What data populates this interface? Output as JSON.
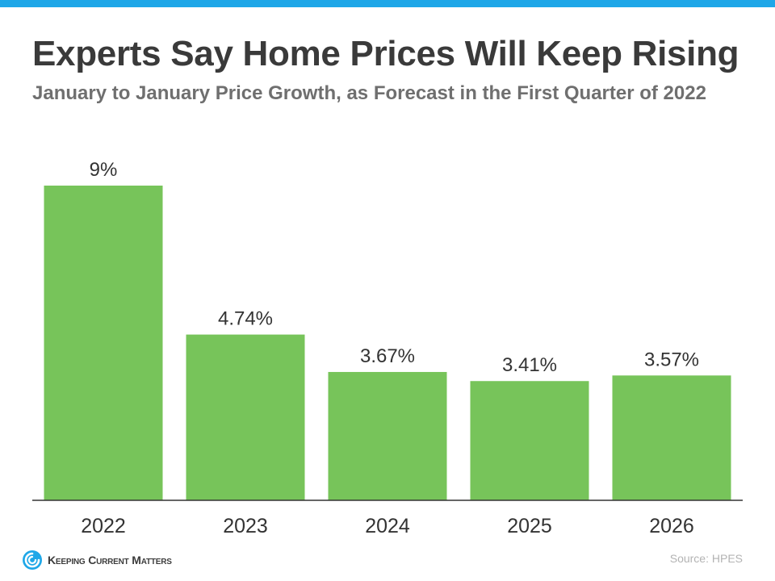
{
  "header": {
    "title": "Experts Say Home Prices Will Keep Rising",
    "subtitle": "January to January Price Growth, as Forecast in the First Quarter of 2022"
  },
  "colors": {
    "accent_bar": "#1ea7e8",
    "bar_fill": "#77c45a",
    "axis": "#333333"
  },
  "chart_data": {
    "type": "bar",
    "categories": [
      "2022",
      "2023",
      "2024",
      "2025",
      "2026"
    ],
    "values": [
      9,
      4.74,
      3.67,
      3.41,
      3.57
    ],
    "value_labels": [
      "9%",
      "4.74%",
      "3.67%",
      "3.41%",
      "3.57%"
    ],
    "title": "Experts Say Home Prices Will Keep Rising",
    "subtitle": "January to January Price Growth, as Forecast in the First Quarter of 2022",
    "ylim": [
      0,
      9
    ],
    "grid": false,
    "legend": "none"
  },
  "footer": {
    "logo_text": "Keeping Current Matters",
    "logo_icon": "kcm-swirl-icon",
    "source": "Source: HPES"
  }
}
